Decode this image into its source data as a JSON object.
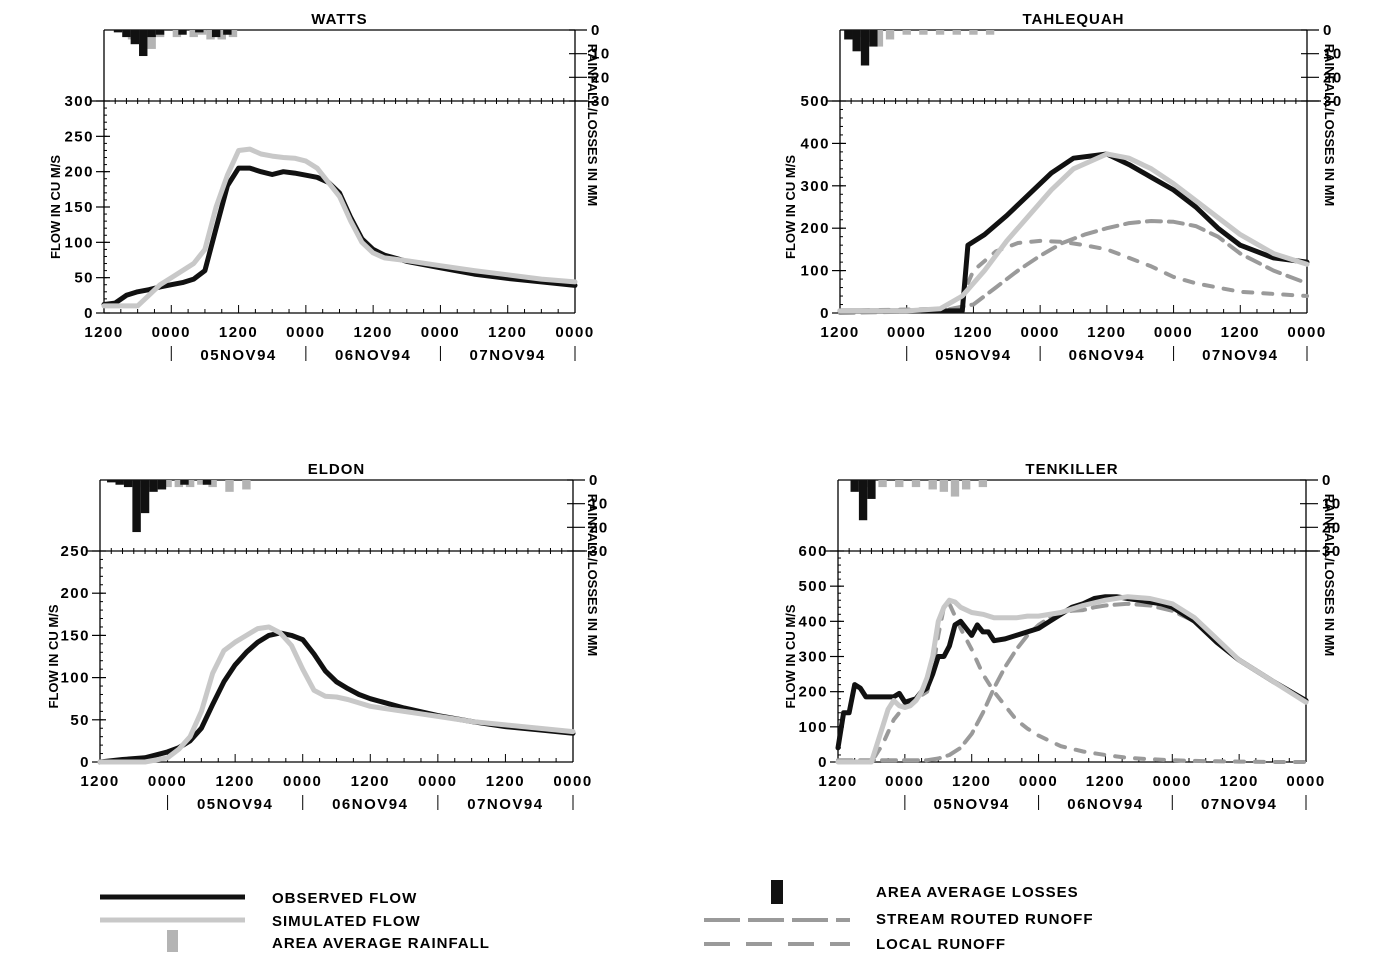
{
  "chart_data": [
    {
      "type": "line",
      "title": "WATTS",
      "ylabel": "FLOW IN CU M/S",
      "y2label": "RAINFALL/LOSSES IN MM",
      "ylim": [
        0,
        300
      ],
      "y_ticks": [
        "0",
        "50",
        "100",
        "150",
        "200",
        "250",
        "300"
      ],
      "y2lim": [
        0,
        30
      ],
      "y2_ticks": [
        "0",
        "10",
        "20",
        "30"
      ],
      "x_unit": "hours from 1200 04NOV94",
      "xlim": [
        0,
        84
      ],
      "x_tick_labels": [
        "1200",
        "0000",
        "1200",
        "0000",
        "1200",
        "0000",
        "1200",
        "0000"
      ],
      "date_labels": [
        "05NOV94",
        "06NOV94",
        "07NOV94"
      ],
      "series": [
        {
          "name": "OBSERVED FLOW",
          "x": [
            0,
            2,
            4,
            6,
            8,
            10,
            12,
            14,
            16,
            18,
            20,
            22,
            24,
            26,
            28,
            30,
            32,
            34,
            36,
            38,
            40,
            42,
            44,
            46,
            48,
            50,
            54,
            60,
            66,
            72,
            78,
            84
          ],
          "values": [
            12,
            14,
            25,
            30,
            33,
            37,
            40,
            43,
            48,
            60,
            120,
            180,
            205,
            205,
            200,
            196,
            200,
            198,
            195,
            192,
            185,
            170,
            135,
            105,
            90,
            82,
            73,
            64,
            55,
            49,
            44,
            39
          ]
        },
        {
          "name": "SIMULATED FLOW",
          "x": [
            0,
            2,
            4,
            6,
            8,
            10,
            12,
            14,
            16,
            18,
            20,
            22,
            24,
            26,
            28,
            30,
            32,
            34,
            36,
            38,
            40,
            42,
            44,
            46,
            48,
            50,
            54,
            60,
            66,
            72,
            78,
            84
          ],
          "values": [
            10,
            10,
            10,
            10,
            25,
            40,
            50,
            60,
            70,
            90,
            150,
            195,
            230,
            232,
            225,
            222,
            220,
            219,
            215,
            205,
            185,
            165,
            130,
            100,
            85,
            78,
            74,
            67,
            60,
            54,
            48,
            44
          ]
        }
      ],
      "rainfall_mm": {
        "x": [
          5,
          7,
          8.5,
          10,
          13,
          16,
          17.5,
          19,
          21,
          23
        ],
        "values": [
          4,
          7,
          8,
          3,
          3,
          3,
          2,
          4,
          4,
          3
        ]
      },
      "losses_mm": {
        "x": [
          2.5,
          4,
          5.5,
          7,
          8.5,
          10,
          14,
          17,
          20,
          22
        ],
        "values": [
          1,
          3,
          6,
          11,
          3,
          2,
          2,
          1,
          3,
          2
        ]
      }
    },
    {
      "type": "line",
      "title": "TAHLEQUAH",
      "ylabel": "FLOW IN CU M/S",
      "y2label": "RAINFALL/LOSSES IN MM",
      "ylim": [
        0,
        500
      ],
      "y_ticks": [
        "0",
        "100",
        "200",
        "300",
        "400",
        "500"
      ],
      "y2lim": [
        0,
        30
      ],
      "y2_ticks": [
        "0",
        "10",
        "20",
        "30"
      ],
      "x_unit": "hours from 1200 04NOV94",
      "xlim": [
        0,
        84
      ],
      "x_tick_labels": [
        "1200",
        "0000",
        "1200",
        "0000",
        "1200",
        "0000",
        "1200",
        "0000"
      ],
      "date_labels": [
        "05NOV94",
        "06NOV94",
        "07NOV94"
      ],
      "series": [
        {
          "name": "OBSERVED FLOW",
          "x": [
            0,
            6,
            12,
            18,
            22,
            23,
            26,
            30,
            34,
            38,
            42,
            48,
            52,
            56,
            60,
            64,
            68,
            72,
            78,
            84
          ],
          "values": [
            5,
            5,
            5,
            5,
            5,
            160,
            185,
            230,
            280,
            330,
            365,
            375,
            350,
            320,
            290,
            250,
            200,
            160,
            130,
            120
          ]
        },
        {
          "name": "SIMULATED FLOW",
          "x": [
            0,
            6,
            12,
            18,
            22,
            26,
            30,
            34,
            38,
            42,
            48,
            52,
            56,
            60,
            64,
            68,
            72,
            78,
            84
          ],
          "values": [
            5,
            5,
            5,
            10,
            40,
            100,
            170,
            230,
            290,
            340,
            375,
            365,
            340,
            305,
            265,
            225,
            185,
            140,
            115
          ]
        },
        {
          "name": "STREAM ROUTED RUNOFF",
          "x": [
            0,
            18,
            24,
            28,
            32,
            36,
            40,
            44,
            48,
            52,
            56,
            60,
            64,
            68,
            72,
            78,
            84
          ],
          "values": [
            0,
            5,
            20,
            60,
            100,
            135,
            165,
            185,
            200,
            212,
            217,
            215,
            205,
            180,
            140,
            100,
            70
          ]
        },
        {
          "name": "LOCAL RUNOFF",
          "x": [
            0,
            18,
            22,
            24,
            28,
            32,
            36,
            40,
            44,
            48,
            52,
            56,
            60,
            64,
            68,
            72,
            78,
            84
          ],
          "values": [
            5,
            10,
            40,
            100,
            145,
            165,
            170,
            168,
            160,
            150,
            130,
            110,
            85,
            70,
            60,
            50,
            45,
            40
          ]
        }
      ],
      "rainfall_mm": {
        "x": [
          3,
          5,
          7,
          9,
          12,
          15,
          18,
          21,
          24,
          27
        ],
        "values": [
          3,
          5,
          7,
          4,
          2,
          2,
          2,
          2,
          2,
          2
        ]
      },
      "losses_mm": {
        "x": [
          1.5,
          3,
          4.5,
          6
        ],
        "values": [
          4,
          9,
          15,
          7
        ]
      }
    },
    {
      "type": "line",
      "title": "ELDON",
      "ylabel": "FLOW IN CU M/S",
      "y2label": "RAINFALL/LOSSES IN MM",
      "ylim": [
        0,
        250
      ],
      "y_ticks": [
        "0",
        "50",
        "100",
        "150",
        "200",
        "250"
      ],
      "y2lim": [
        0,
        30
      ],
      "y2_ticks": [
        "0",
        "10",
        "20",
        "30"
      ],
      "x_unit": "hours from 1200 04NOV94",
      "xlim": [
        0,
        84
      ],
      "x_tick_labels": [
        "1200",
        "0000",
        "1200",
        "0000",
        "1200",
        "0000",
        "1200",
        "0000"
      ],
      "date_labels": [
        "05NOV94",
        "06NOV94",
        "07NOV94"
      ],
      "series": [
        {
          "name": "OBSERVED FLOW",
          "x": [
            0,
            4,
            8,
            12,
            14,
            16,
            18,
            20,
            22,
            24,
            26,
            28,
            30,
            32,
            34,
            36,
            38,
            40,
            42,
            44,
            46,
            48,
            54,
            60,
            66,
            72,
            78,
            84
          ],
          "values": [
            0,
            3,
            5,
            12,
            17,
            25,
            40,
            68,
            95,
            115,
            130,
            142,
            150,
            153,
            150,
            145,
            128,
            108,
            95,
            87,
            80,
            75,
            64,
            55,
            48,
            42,
            38,
            34
          ]
        },
        {
          "name": "SIMULATED FLOW",
          "x": [
            0,
            4,
            8,
            12,
            14,
            16,
            18,
            20,
            22,
            24,
            26,
            28,
            30,
            32,
            34,
            36,
            38,
            40,
            42,
            44,
            46,
            48,
            54,
            60,
            66,
            72,
            78,
            84
          ],
          "values": [
            0,
            0,
            0,
            5,
            15,
            30,
            60,
            105,
            132,
            142,
            150,
            158,
            160,
            153,
            138,
            110,
            85,
            78,
            77,
            74,
            70,
            66,
            60,
            54,
            48,
            44,
            40,
            36
          ]
        }
      ],
      "rainfall_mm": {
        "x": [
          8,
          10,
          12,
          14,
          16,
          18,
          20,
          23,
          26
        ],
        "values": [
          3,
          4,
          3,
          3,
          3,
          2,
          3,
          5,
          4
        ]
      },
      "losses_mm": {
        "x": [
          2,
          3.5,
          5,
          6.5,
          8,
          9.5,
          11,
          15,
          19
        ],
        "values": [
          1,
          2,
          3,
          22,
          14,
          5,
          4,
          2,
          2
        ]
      }
    },
    {
      "type": "line",
      "title": "TENKILLER",
      "ylabel": "FLOW IN CU M/S",
      "y2label": "RAINFALL/LOSSES IN MM",
      "ylim": [
        0,
        600
      ],
      "y_ticks": [
        "0",
        "100",
        "200",
        "300",
        "400",
        "500",
        "600"
      ],
      "y2lim": [
        0,
        30
      ],
      "y2_ticks": [
        "0",
        "10",
        "20",
        "30"
      ],
      "x_unit": "hours from 1200 04NOV94",
      "xlim": [
        0,
        84
      ],
      "x_tick_labels": [
        "1200",
        "0000",
        "1200",
        "0000",
        "1200",
        "0000",
        "1200",
        "0000"
      ],
      "date_labels": [
        "05NOV94",
        "06NOV94",
        "07NOV94"
      ],
      "series": [
        {
          "name": "OBSERVED FLOW",
          "x": [
            0,
            1,
            2,
            3,
            4,
            5,
            6,
            8,
            10,
            11,
            12,
            14,
            15,
            16,
            17,
            18,
            19,
            20,
            21,
            22,
            23,
            24,
            25,
            26,
            27,
            28,
            30,
            32,
            34,
            36,
            38,
            40,
            42,
            44,
            46,
            48,
            50,
            52,
            54,
            56,
            58,
            60,
            64,
            68,
            72,
            78,
            84
          ],
          "values": [
            40,
            140,
            140,
            220,
            210,
            185,
            185,
            185,
            185,
            195,
            170,
            180,
            200,
            210,
            250,
            300,
            300,
            330,
            390,
            400,
            380,
            360,
            390,
            370,
            370,
            345,
            350,
            360,
            370,
            380,
            400,
            420,
            440,
            450,
            465,
            470,
            470,
            465,
            460,
            455,
            450,
            440,
            400,
            340,
            290,
            230,
            175
          ]
        },
        {
          "name": "SIMULATED FLOW",
          "x": [
            0,
            3,
            5,
            6,
            7,
            8,
            9,
            10,
            11,
            12,
            13,
            14,
            15,
            16,
            17,
            18,
            19,
            20,
            21,
            22,
            24,
            26,
            28,
            30,
            32,
            34,
            36,
            40,
            44,
            48,
            52,
            56,
            60,
            64,
            68,
            72,
            78,
            84
          ],
          "values": [
            0,
            0,
            0,
            0,
            50,
            100,
            150,
            175,
            160,
            155,
            160,
            175,
            200,
            240,
            300,
            400,
            440,
            460,
            455,
            440,
            425,
            420,
            410,
            410,
            410,
            415,
            415,
            425,
            445,
            460,
            470,
            465,
            450,
            410,
            350,
            290,
            230,
            170
          ]
        },
        {
          "name": "STREAM ROUTED RUNOFF",
          "x": [
            0,
            8,
            12,
            14,
            16,
            18,
            20,
            22,
            24,
            26,
            28,
            30,
            32,
            34,
            36,
            38,
            40,
            42,
            44,
            46,
            48,
            52,
            56,
            60,
            64,
            68,
            72,
            78,
            84
          ],
          "values": [
            5,
            5,
            5,
            5,
            5,
            10,
            20,
            40,
            80,
            140,
            210,
            270,
            320,
            360,
            390,
            410,
            425,
            430,
            432,
            440,
            445,
            450,
            445,
            430,
            400,
            350,
            290,
            230,
            170
          ]
        },
        {
          "name": "LOCAL RUNOFF",
          "x": [
            0,
            6,
            8,
            10,
            12,
            14,
            16,
            17,
            18,
            19,
            20,
            22,
            24,
            26,
            28,
            30,
            32,
            34,
            36,
            38,
            40,
            44,
            48,
            52,
            56,
            60,
            64,
            68,
            72,
            78,
            84
          ],
          "values": [
            0,
            0,
            50,
            120,
            160,
            180,
            200,
            260,
            360,
            440,
            450,
            380,
            320,
            250,
            200,
            160,
            120,
            95,
            75,
            60,
            45,
            30,
            20,
            12,
            8,
            5,
            3,
            2,
            1,
            0,
            0
          ]
        }
      ],
      "rainfall_mm": {
        "x": [
          5,
          8,
          11,
          14,
          17,
          19,
          21,
          23,
          26
        ],
        "values": [
          3,
          3,
          3,
          3,
          4,
          5,
          7,
          4,
          3
        ]
      },
      "losses_mm": {
        "x": [
          3,
          4.5,
          6
        ],
        "values": [
          5,
          17,
          8
        ]
      }
    }
  ],
  "legend": {
    "observed": "OBSERVED FLOW",
    "simulated": "SIMULATED FLOW",
    "rainfall": "AREA AVERAGE RAINFALL",
    "losses": "AREA AVERAGE LOSSES",
    "routed": "STREAM ROUTED RUNOFF",
    "local": "LOCAL RUNOFF"
  },
  "colors": {
    "observed": "#111111",
    "simulated": "#c8c8c8",
    "runoff": "#9a9a9a",
    "rainfall": "#b4b4b4",
    "losses": "#111111"
  }
}
